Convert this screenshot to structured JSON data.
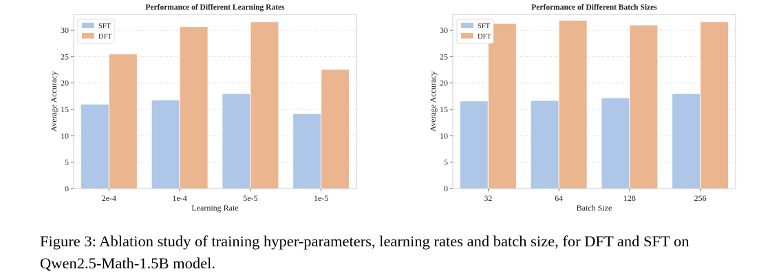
{
  "chart_data": [
    {
      "type": "bar",
      "title": "Performance of Different Learning Rates",
      "xlabel": "Learning Rate",
      "ylabel": "Average Accuracy",
      "categories": [
        "2e-4",
        "1e-4",
        "5e-5",
        "1e-5"
      ],
      "series": [
        {
          "name": "SFT",
          "color": "#aec7e8",
          "values": [
            16.0,
            16.8,
            18.0,
            14.2
          ]
        },
        {
          "name": "DFT",
          "color": "#ebb58f",
          "values": [
            25.5,
            30.7,
            31.6,
            22.6
          ]
        }
      ],
      "ylim": [
        0,
        33
      ],
      "yticks": [
        "0",
        "5",
        "10",
        "15",
        "20",
        "25",
        "30"
      ],
      "grid": "horizontal dashed",
      "legend": "top-left"
    },
    {
      "type": "bar",
      "title": "Performance of Different Batch Sizes",
      "xlabel": "Batch Size",
      "ylabel": "Average Accuracy",
      "categories": [
        "32",
        "64",
        "128",
        "256"
      ],
      "series": [
        {
          "name": "SFT",
          "color": "#aec7e8",
          "values": [
            16.6,
            16.7,
            17.2,
            18.0
          ]
        },
        {
          "name": "DFT",
          "color": "#ebb58f",
          "values": [
            31.3,
            31.9,
            31.0,
            31.6
          ]
        }
      ],
      "ylim": [
        0,
        33
      ],
      "yticks": [
        "0",
        "5",
        "10",
        "15",
        "20",
        "25",
        "30"
      ],
      "grid": "horizontal dashed",
      "legend": "top-left"
    }
  ],
  "caption": {
    "text": "Figure 3: Ablation study of training hyper-parameters, learning rates and batch size, for DFT and SFT on Qwen2.5-Math-1.5B model."
  }
}
